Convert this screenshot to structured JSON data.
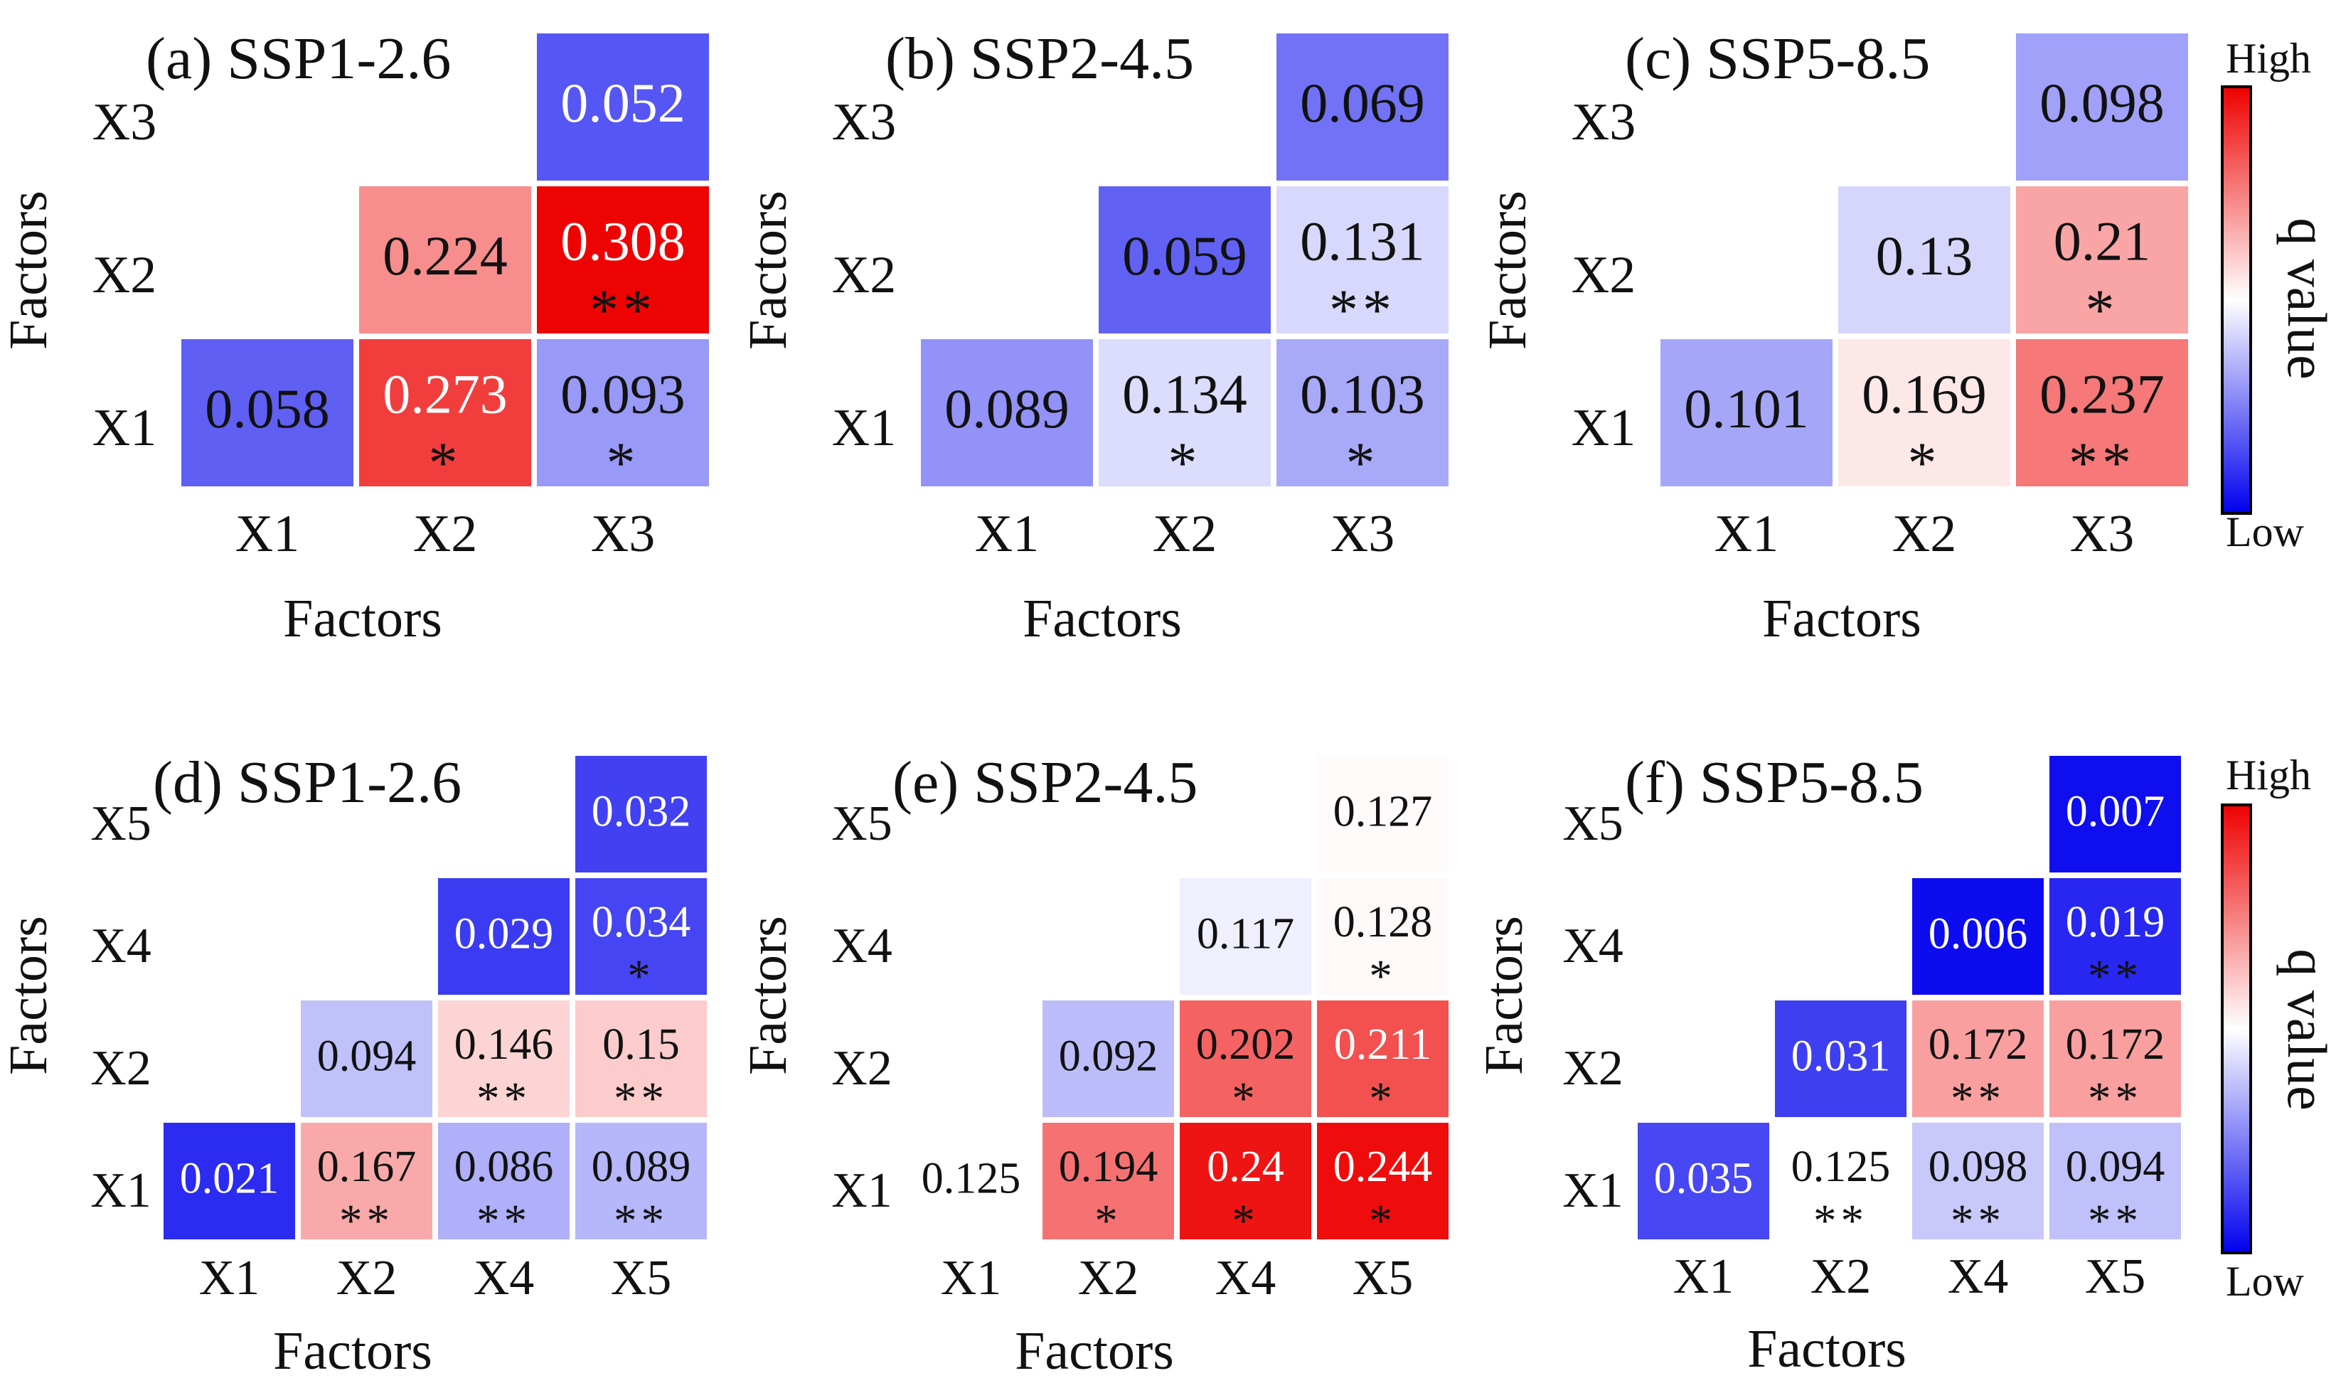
{
  "chart_data": [
    {
      "type": "heatmap",
      "panel": "a",
      "title": "(a) SSP1-2.6",
      "xlabel": "Factors",
      "ylabel": "Factors",
      "x_ticks": [
        "X1",
        "X2",
        "X3"
      ],
      "y_ticks": [
        "X3",
        "X2",
        "X1"
      ],
      "value_range": [
        0.0,
        0.31
      ],
      "cells": [
        {
          "row": 0,
          "col": 2,
          "value": 0.052,
          "label": "0.052",
          "sig": ""
        },
        {
          "row": 1,
          "col": 1,
          "value": 0.224,
          "label": "0.224",
          "sig": ""
        },
        {
          "row": 1,
          "col": 2,
          "value": 0.308,
          "label": "0.308",
          "sig": "**"
        },
        {
          "row": 2,
          "col": 0,
          "value": 0.058,
          "label": "0.058",
          "sig": ""
        },
        {
          "row": 2,
          "col": 1,
          "value": 0.273,
          "label": "0.273",
          "sig": "*"
        },
        {
          "row": 2,
          "col": 2,
          "value": 0.093,
          "label": "0.093",
          "sig": "*"
        }
      ]
    },
    {
      "type": "heatmap",
      "panel": "b",
      "title": "(b) SSP2-4.5",
      "xlabel": "Factors",
      "ylabel": "Factors",
      "x_ticks": [
        "X1",
        "X2",
        "X3"
      ],
      "y_ticks": [
        "X3",
        "X2",
        "X1"
      ],
      "value_range": [
        0.0,
        0.31
      ],
      "cells": [
        {
          "row": 0,
          "col": 2,
          "value": 0.069,
          "label": "0.069",
          "sig": ""
        },
        {
          "row": 1,
          "col": 1,
          "value": 0.059,
          "label": "0.059",
          "sig": ""
        },
        {
          "row": 1,
          "col": 2,
          "value": 0.131,
          "label": "0.131",
          "sig": "**"
        },
        {
          "row": 2,
          "col": 0,
          "value": 0.089,
          "label": "0.089",
          "sig": ""
        },
        {
          "row": 2,
          "col": 1,
          "value": 0.134,
          "label": "0.134",
          "sig": "*"
        },
        {
          "row": 2,
          "col": 2,
          "value": 0.103,
          "label": "0.103",
          "sig": "*"
        }
      ]
    },
    {
      "type": "heatmap",
      "panel": "c",
      "title": "(c) SSP5-8.5",
      "xlabel": "Factors",
      "ylabel": "Factors",
      "x_ticks": [
        "X1",
        "X2",
        "X3"
      ],
      "y_ticks": [
        "X3",
        "X2",
        "X1"
      ],
      "value_range": [
        0.0,
        0.31
      ],
      "cells": [
        {
          "row": 0,
          "col": 2,
          "value": 0.098,
          "label": "0.098",
          "sig": ""
        },
        {
          "row": 1,
          "col": 1,
          "value": 0.13,
          "label": "0.13",
          "sig": ""
        },
        {
          "row": 1,
          "col": 2,
          "value": 0.21,
          "label": "0.21",
          "sig": "*"
        },
        {
          "row": 2,
          "col": 0,
          "value": 0.101,
          "label": "0.101",
          "sig": ""
        },
        {
          "row": 2,
          "col": 1,
          "value": 0.169,
          "label": "0.169",
          "sig": "*"
        },
        {
          "row": 2,
          "col": 2,
          "value": 0.237,
          "label": "0.237",
          "sig": "**"
        }
      ]
    },
    {
      "type": "heatmap",
      "panel": "d",
      "title": "(d) SSP1-2.6",
      "xlabel": "Factors",
      "ylabel": "Factors",
      "x_ticks": [
        "X1",
        "X2",
        "X4",
        "X5"
      ],
      "y_ticks": [
        "X5",
        "X4",
        "X2",
        "X1"
      ],
      "value_range": [
        0.0,
        0.25
      ],
      "cells": [
        {
          "row": 0,
          "col": 3,
          "value": 0.032,
          "label": "0.032",
          "sig": ""
        },
        {
          "row": 1,
          "col": 2,
          "value": 0.029,
          "label": "0.029",
          "sig": ""
        },
        {
          "row": 1,
          "col": 3,
          "value": 0.034,
          "label": "0.034",
          "sig": "*"
        },
        {
          "row": 2,
          "col": 1,
          "value": 0.094,
          "label": "0.094",
          "sig": ""
        },
        {
          "row": 2,
          "col": 2,
          "value": 0.146,
          "label": "0.146",
          "sig": "**"
        },
        {
          "row": 2,
          "col": 3,
          "value": 0.15,
          "label": "0.15",
          "sig": "**"
        },
        {
          "row": 3,
          "col": 0,
          "value": 0.021,
          "label": "0.021",
          "sig": ""
        },
        {
          "row": 3,
          "col": 1,
          "value": 0.167,
          "label": "0.167",
          "sig": "**"
        },
        {
          "row": 3,
          "col": 2,
          "value": 0.086,
          "label": "0.086",
          "sig": "**"
        },
        {
          "row": 3,
          "col": 3,
          "value": 0.089,
          "label": "0.089",
          "sig": "**"
        }
      ]
    },
    {
      "type": "heatmap",
      "panel": "e",
      "title": "(e) SSP2-4.5",
      "xlabel": "Factors",
      "ylabel": "Factors",
      "x_ticks": [
        "X1",
        "X2",
        "X4",
        "X5"
      ],
      "y_ticks": [
        "X5",
        "X4",
        "X2",
        "X1"
      ],
      "value_range": [
        0.0,
        0.25
      ],
      "cells": [
        {
          "row": 0,
          "col": 3,
          "value": 0.127,
          "label": "0.127",
          "sig": ""
        },
        {
          "row": 1,
          "col": 2,
          "value": 0.117,
          "label": "0.117",
          "sig": ""
        },
        {
          "row": 1,
          "col": 3,
          "value": 0.128,
          "label": "0.128",
          "sig": "*"
        },
        {
          "row": 2,
          "col": 1,
          "value": 0.092,
          "label": "0.092",
          "sig": ""
        },
        {
          "row": 2,
          "col": 2,
          "value": 0.202,
          "label": "0.202",
          "sig": "*"
        },
        {
          "row": 2,
          "col": 3,
          "value": 0.211,
          "label": "0.211",
          "sig": "*"
        },
        {
          "row": 3,
          "col": 0,
          "value": 0.125,
          "label": "0.125",
          "sig": ""
        },
        {
          "row": 3,
          "col": 1,
          "value": 0.194,
          "label": "0.194",
          "sig": "*"
        },
        {
          "row": 3,
          "col": 2,
          "value": 0.24,
          "label": "0.24",
          "sig": "*"
        },
        {
          "row": 3,
          "col": 3,
          "value": 0.244,
          "label": "0.244",
          "sig": "*"
        }
      ]
    },
    {
      "type": "heatmap",
      "panel": "f",
      "title": "(f) SSP5-8.5",
      "xlabel": "Factors",
      "ylabel": "Factors",
      "x_ticks": [
        "X1",
        "X2",
        "X4",
        "X5"
      ],
      "y_ticks": [
        "X5",
        "X4",
        "X2",
        "X1"
      ],
      "value_range": [
        0.0,
        0.25
      ],
      "cells": [
        {
          "row": 0,
          "col": 3,
          "value": 0.007,
          "label": "0.007",
          "sig": ""
        },
        {
          "row": 1,
          "col": 2,
          "value": 0.006,
          "label": "0.006",
          "sig": ""
        },
        {
          "row": 1,
          "col": 3,
          "value": 0.019,
          "label": "0.019",
          "sig": "**"
        },
        {
          "row": 2,
          "col": 1,
          "value": 0.031,
          "label": "0.031",
          "sig": ""
        },
        {
          "row": 2,
          "col": 2,
          "value": 0.172,
          "label": "0.172",
          "sig": "**"
        },
        {
          "row": 2,
          "col": 3,
          "value": 0.172,
          "label": "0.172",
          "sig": "**"
        },
        {
          "row": 3,
          "col": 0,
          "value": 0.035,
          "label": "0.035",
          "sig": ""
        },
        {
          "row": 3,
          "col": 1,
          "value": 0.125,
          "label": "0.125",
          "sig": "**"
        },
        {
          "row": 3,
          "col": 2,
          "value": 0.098,
          "label": "0.098",
          "sig": "**"
        },
        {
          "row": 3,
          "col": 3,
          "value": 0.094,
          "label": "0.094",
          "sig": "**"
        }
      ]
    }
  ],
  "colorbars": [
    {
      "high_label": "High",
      "low_label": "Low",
      "title": "q value"
    },
    {
      "high_label": "High",
      "low_label": "Low",
      "title": "q value"
    }
  ],
  "colors": {
    "low": "#0000ee",
    "mid": "#ffffff",
    "high": "#ee0000"
  }
}
